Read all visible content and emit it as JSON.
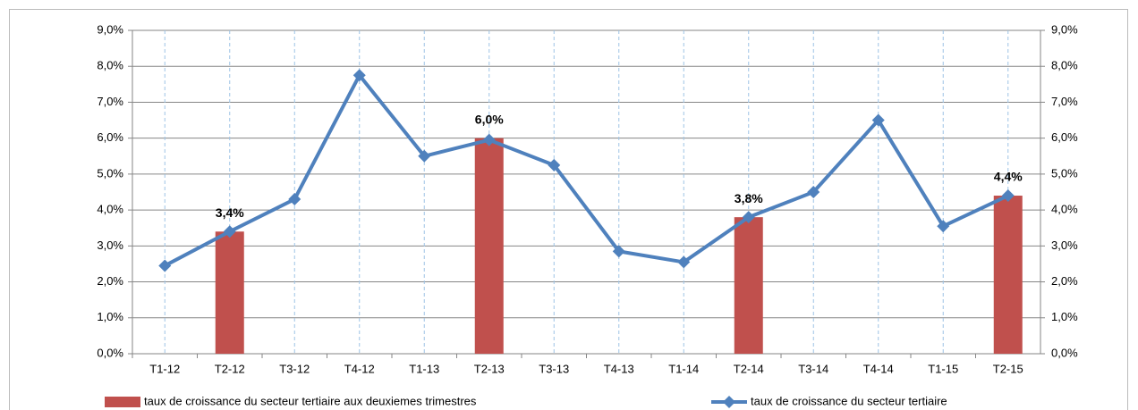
{
  "chart_data": {
    "type": "bar-line",
    "categories": [
      "T1-12",
      "T2-12",
      "T3-12",
      "T4-12",
      "T1-13",
      "T2-13",
      "T3-13",
      "T4-13",
      "T1-14",
      "T2-14",
      "T3-14",
      "T4-14",
      "T1-15",
      "T2-15"
    ],
    "series": [
      {
        "name": "taux de croissance du secteur tertiaire aux deuxiemes trimestres",
        "type": "bar",
        "color": "#c0504d",
        "values": [
          null,
          3.4,
          null,
          null,
          null,
          6.0,
          null,
          null,
          null,
          3.8,
          null,
          null,
          null,
          4.4
        ],
        "value_labels": [
          null,
          "3,4%",
          null,
          null,
          null,
          "6,0%",
          null,
          null,
          null,
          "3,8%",
          null,
          null,
          null,
          "4,4%"
        ]
      },
      {
        "name": "taux de croissance du secteur tertiaire",
        "type": "line",
        "axis": "y2",
        "color": "#4f81bd",
        "values": [
          2.45,
          3.4,
          4.3,
          7.75,
          5.5,
          5.95,
          5.25,
          2.85,
          2.55,
          3.8,
          4.5,
          6.5,
          3.55,
          4.4
        ]
      }
    ],
    "ylim": [
      0,
      9
    ],
    "yticks": [
      {
        "value": 0,
        "label": "0,0%"
      },
      {
        "value": 1,
        "label": "1,0%"
      },
      {
        "value": 2,
        "label": "2,0%"
      },
      {
        "value": 3,
        "label": "3,0%"
      },
      {
        "value": 4,
        "label": "4,0%"
      },
      {
        "value": 5,
        "label": "5,0%"
      },
      {
        "value": 6,
        "label": "6,0%"
      },
      {
        "value": 7,
        "label": "7,0%"
      },
      {
        "value": 8,
        "label": "8,0%"
      },
      {
        "value": 9,
        "label": "9,0%"
      }
    ],
    "y2lim": [
      0,
      9
    ],
    "y2ticks": [
      {
        "value": 0,
        "label": "0,0%"
      },
      {
        "value": 1,
        "label": "1,0%"
      },
      {
        "value": 2,
        "label": "2,0%"
      },
      {
        "value": 3,
        "label": "3,0%"
      },
      {
        "value": 4,
        "label": "4,0%"
      },
      {
        "value": 5,
        "label": "5,0%"
      },
      {
        "value": 6,
        "label": "6,0%"
      },
      {
        "value": 7,
        "label": "7,0%"
      },
      {
        "value": 8,
        "label": "8,0%"
      },
      {
        "value": 9,
        "label": "9,0%"
      }
    ],
    "grid": true,
    "legend": "bottom"
  }
}
